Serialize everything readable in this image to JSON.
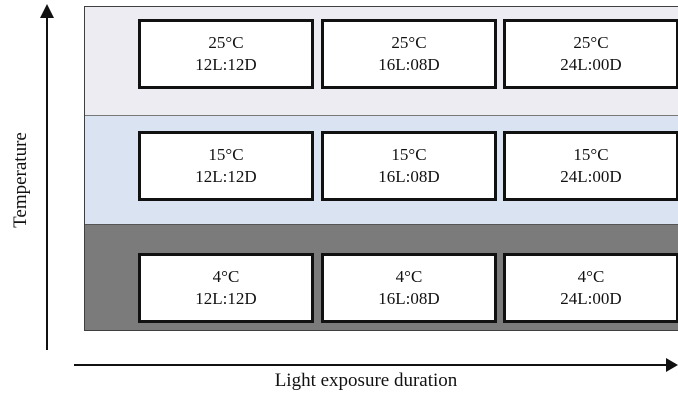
{
  "axes": {
    "x_label": "Light exposure duration",
    "y_label": "Temperature"
  },
  "rows": [
    {
      "temperature": "25°C",
      "cells": [
        {
          "temperature": "25°C",
          "photoperiod": "12L:12D"
        },
        {
          "temperature": "25°C",
          "photoperiod": "16L:08D"
        },
        {
          "temperature": "25°C",
          "photoperiod": "24L:00D"
        }
      ]
    },
    {
      "temperature": "15°C",
      "cells": [
        {
          "temperature": "15°C",
          "photoperiod": "12L:12D"
        },
        {
          "temperature": "15°C",
          "photoperiod": "16L:08D"
        },
        {
          "temperature": "15°C",
          "photoperiod": "24L:00D"
        }
      ]
    },
    {
      "temperature": "4°C",
      "cells": [
        {
          "temperature": "4°C",
          "photoperiod": "12L:12D"
        },
        {
          "temperature": "4°C",
          "photoperiod": "16L:08D"
        },
        {
          "temperature": "4°C",
          "photoperiod": "24L:00D"
        }
      ]
    }
  ],
  "colors": {
    "top_band": "#ececf2",
    "middle_band": "#d9e3f1",
    "bottom_band": "#7b7b7b",
    "box_border": "#111111",
    "box_fill": "#ffffff"
  }
}
